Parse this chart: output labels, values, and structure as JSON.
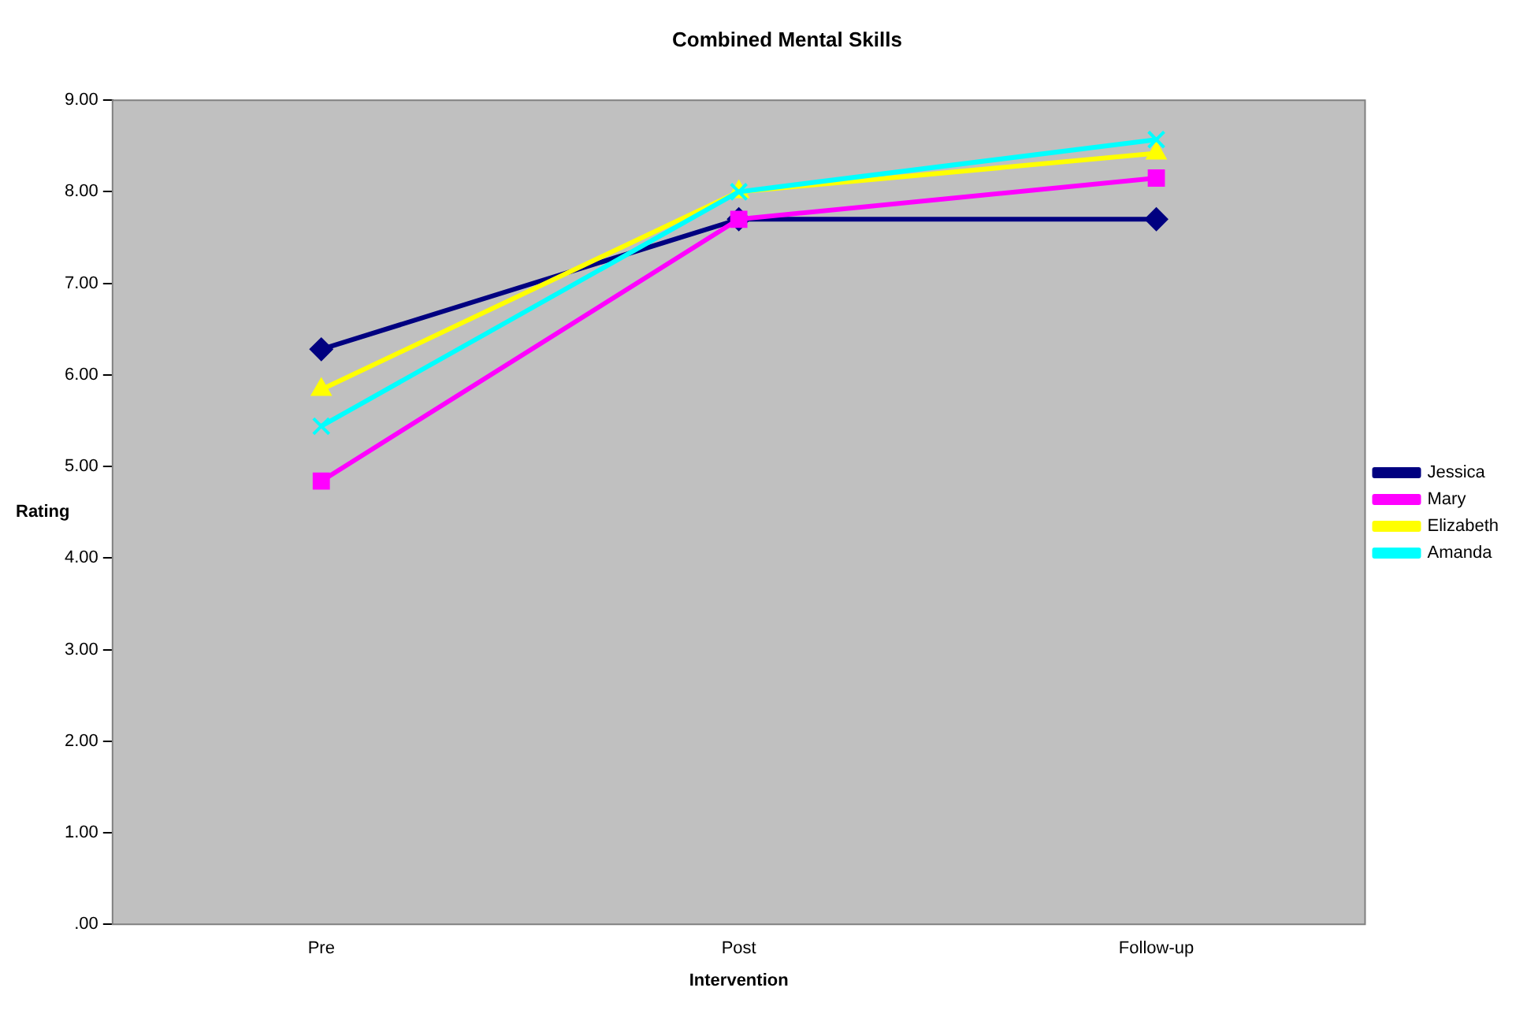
{
  "chart_data": {
    "type": "line",
    "title": "Combined Mental Skills",
    "xlabel": "Intervention",
    "ylabel": "Rating",
    "categories": [
      "Pre",
      "Post",
      "Follow-up"
    ],
    "series": [
      {
        "name": "Jessica",
        "color": "#000080",
        "marker": "diamond",
        "values": [
          6.28,
          7.7,
          7.7
        ]
      },
      {
        "name": "Mary",
        "color": "#ff00ff",
        "marker": "square",
        "values": [
          4.84,
          7.7,
          8.15
        ]
      },
      {
        "name": "Elizabeth",
        "color": "#ffff00",
        "marker": "triangle",
        "values": [
          5.84,
          8.0,
          8.42
        ]
      },
      {
        "name": "Amanda",
        "color": "#00ffff",
        "marker": "cross",
        "values": [
          5.44,
          8.0,
          8.57
        ]
      }
    ],
    "ylim": [
      0,
      9
    ],
    "yticks": [
      {
        "value": 0,
        "label": ".00"
      },
      {
        "value": 1,
        "label": "1.00"
      },
      {
        "value": 2,
        "label": "2.00"
      },
      {
        "value": 3,
        "label": "3.00"
      },
      {
        "value": 4,
        "label": "4.00"
      },
      {
        "value": 5,
        "label": "5.00"
      },
      {
        "value": 6,
        "label": "6.00"
      },
      {
        "value": 7,
        "label": "7.00"
      },
      {
        "value": 8,
        "label": "8.00"
      },
      {
        "value": 9,
        "label": "9.00"
      }
    ],
    "grid": false,
    "legend": "right"
  }
}
